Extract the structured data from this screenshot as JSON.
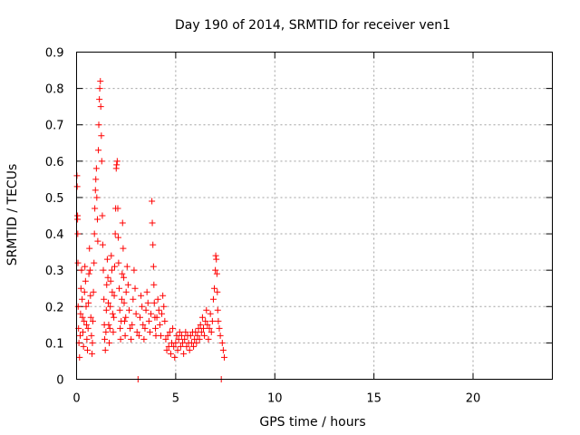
{
  "chart_data": {
    "type": "scatter",
    "title": "Day 190 of 2014, SRMTID for receiver ven1",
    "xlabel": "GPS time / hours",
    "ylabel": "SRMTID / TECUs",
    "xlim": [
      0,
      24
    ],
    "ylim": [
      0,
      0.9
    ],
    "xticks": [
      "0",
      "5",
      "10",
      "15",
      "20"
    ],
    "yticks": [
      "0",
      "0.1",
      "0.2",
      "0.3",
      "0.4",
      "0.5",
      "0.6",
      "0.7",
      "0.8",
      "0.9"
    ],
    "grid": true,
    "series": [
      {
        "name": "ven1",
        "color": "#ff0000",
        "marker": "plus",
        "points": [
          [
            0.02,
            0.56
          ],
          [
            0.03,
            0.53
          ],
          [
            0.05,
            0.45
          ],
          [
            0.05,
            0.44
          ],
          [
            0.06,
            0.4
          ],
          [
            0.07,
            0.32
          ],
          [
            0.08,
            0.2
          ],
          [
            0.1,
            0.14
          ],
          [
            0.12,
            0.1
          ],
          [
            0.15,
            0.06
          ],
          [
            0.18,
            0.12
          ],
          [
            0.2,
            0.18
          ],
          [
            0.22,
            0.25
          ],
          [
            0.25,
            0.3
          ],
          [
            0.28,
            0.22
          ],
          [
            0.3,
            0.17
          ],
          [
            0.32,
            0.13
          ],
          [
            0.35,
            0.09
          ],
          [
            0.38,
            0.16
          ],
          [
            0.4,
            0.24
          ],
          [
            0.42,
            0.31
          ],
          [
            0.45,
            0.27
          ],
          [
            0.48,
            0.2
          ],
          [
            0.5,
            0.15
          ],
          [
            0.52,
            0.11
          ],
          [
            0.55,
            0.08
          ],
          [
            0.58,
            0.14
          ],
          [
            0.6,
            0.21
          ],
          [
            0.62,
            0.29
          ],
          [
            0.65,
            0.36
          ],
          [
            0.68,
            0.3
          ],
          [
            0.7,
            0.23
          ],
          [
            0.72,
            0.17
          ],
          [
            0.75,
            0.12
          ],
          [
            0.78,
            0.07
          ],
          [
            0.8,
            0.1
          ],
          [
            0.82,
            0.16
          ],
          [
            0.85,
            0.24
          ],
          [
            0.88,
            0.32
          ],
          [
            0.9,
            0.4
          ],
          [
            0.92,
            0.47
          ],
          [
            0.95,
            0.52
          ],
          [
            0.97,
            0.55
          ],
          [
            1.0,
            0.58
          ],
          [
            1.02,
            0.5
          ],
          [
            1.05,
            0.44
          ],
          [
            1.07,
            0.38
          ],
          [
            1.1,
            0.63
          ],
          [
            1.12,
            0.7
          ],
          [
            1.15,
            0.77
          ],
          [
            1.17,
            0.8
          ],
          [
            1.2,
            0.82
          ],
          [
            1.22,
            0.75
          ],
          [
            1.25,
            0.67
          ],
          [
            1.27,
            0.6
          ],
          [
            1.3,
            0.45
          ],
          [
            1.32,
            0.37
          ],
          [
            1.35,
            0.3
          ],
          [
            1.38,
            0.22
          ],
          [
            1.4,
            0.15
          ],
          [
            1.42,
            0.11
          ],
          [
            1.45,
            0.08
          ],
          [
            1.48,
            0.13
          ],
          [
            1.5,
            0.19
          ],
          [
            1.52,
            0.26
          ],
          [
            1.55,
            0.33
          ],
          [
            1.58,
            0.28
          ],
          [
            1.6,
            0.21
          ],
          [
            1.62,
            0.15
          ],
          [
            1.65,
            0.1
          ],
          [
            1.68,
            0.14
          ],
          [
            1.7,
            0.2
          ],
          [
            1.72,
            0.27
          ],
          [
            1.75,
            0.34
          ],
          [
            1.78,
            0.3
          ],
          [
            1.8,
            0.24
          ],
          [
            1.82,
            0.18
          ],
          [
            1.85,
            0.13
          ],
          [
            1.88,
            0.17
          ],
          [
            1.9,
            0.23
          ],
          [
            1.92,
            0.31
          ],
          [
            1.95,
            0.4
          ],
          [
            1.97,
            0.47
          ],
          [
            2.0,
            0.58
          ],
          [
            2.02,
            0.59
          ],
          [
            2.05,
            0.6
          ],
          [
            2.08,
            0.47
          ],
          [
            2.1,
            0.39
          ],
          [
            2.12,
            0.32
          ],
          [
            2.15,
            0.25
          ],
          [
            2.18,
            0.19
          ],
          [
            2.2,
            0.14
          ],
          [
            2.22,
            0.11
          ],
          [
            2.25,
            0.16
          ],
          [
            2.28,
            0.22
          ],
          [
            2.3,
            0.29
          ],
          [
            2.32,
            0.43
          ],
          [
            2.35,
            0.36
          ],
          [
            2.38,
            0.28
          ],
          [
            2.4,
            0.21
          ],
          [
            2.42,
            0.16
          ],
          [
            2.45,
            0.12
          ],
          [
            2.48,
            0.17
          ],
          [
            2.5,
            0.24
          ],
          [
            2.55,
            0.31
          ],
          [
            2.6,
            0.26
          ],
          [
            2.65,
            0.19
          ],
          [
            2.7,
            0.14
          ],
          [
            2.75,
            0.11
          ],
          [
            2.8,
            0.15
          ],
          [
            2.85,
            0.22
          ],
          [
            2.9,
            0.3
          ],
          [
            2.95,
            0.25
          ],
          [
            3.0,
            0.18
          ],
          [
            3.05,
            0.13
          ],
          [
            3.1,
            0.0
          ],
          [
            3.15,
            0.12
          ],
          [
            3.2,
            0.17
          ],
          [
            3.25,
            0.23
          ],
          [
            3.3,
            0.2
          ],
          [
            3.35,
            0.15
          ],
          [
            3.4,
            0.11
          ],
          [
            3.45,
            0.14
          ],
          [
            3.5,
            0.19
          ],
          [
            3.55,
            0.24
          ],
          [
            3.6,
            0.21
          ],
          [
            3.65,
            0.16
          ],
          [
            3.7,
            0.13
          ],
          [
            3.75,
            0.18
          ],
          [
            3.8,
            0.49
          ],
          [
            3.82,
            0.43
          ],
          [
            3.85,
            0.37
          ],
          [
            3.88,
            0.31
          ],
          [
            3.9,
            0.26
          ],
          [
            3.92,
            0.21
          ],
          [
            3.95,
            0.17
          ],
          [
            3.98,
            0.14
          ],
          [
            4.0,
            0.12
          ],
          [
            4.05,
            0.17
          ],
          [
            4.1,
            0.22
          ],
          [
            4.15,
            0.19
          ],
          [
            4.2,
            0.15
          ],
          [
            4.25,
            0.12
          ],
          [
            4.3,
            0.18
          ],
          [
            4.35,
            0.23
          ],
          [
            4.4,
            0.2
          ],
          [
            4.45,
            0.16
          ],
          [
            4.5,
            0.11
          ],
          [
            4.55,
            0.08
          ],
          [
            4.6,
            0.12
          ],
          [
            4.65,
            0.09
          ],
          [
            4.7,
            0.13
          ],
          [
            4.75,
            0.07
          ],
          [
            4.8,
            0.1
          ],
          [
            4.85,
            0.14
          ],
          [
            4.9,
            0.09
          ],
          [
            4.95,
            0.06
          ],
          [
            5.0,
            0.1
          ],
          [
            5.05,
            0.12
          ],
          [
            5.1,
            0.08
          ],
          [
            5.15,
            0.11
          ],
          [
            5.2,
            0.13
          ],
          [
            5.25,
            0.09
          ],
          [
            5.3,
            0.12
          ],
          [
            5.35,
            0.1
          ],
          [
            5.4,
            0.07
          ],
          [
            5.45,
            0.11
          ],
          [
            5.5,
            0.13
          ],
          [
            5.55,
            0.09
          ],
          [
            5.6,
            0.12
          ],
          [
            5.65,
            0.1
          ],
          [
            5.7,
            0.08
          ],
          [
            5.75,
            0.12
          ],
          [
            5.8,
            0.1
          ],
          [
            5.85,
            0.13
          ],
          [
            5.9,
            0.09
          ],
          [
            5.95,
            0.11
          ],
          [
            6.0,
            0.13
          ],
          [
            6.05,
            0.1
          ],
          [
            6.1,
            0.12
          ],
          [
            6.15,
            0.14
          ],
          [
            6.2,
            0.11
          ],
          [
            6.25,
            0.15
          ],
          [
            6.3,
            0.13
          ],
          [
            6.35,
            0.17
          ],
          [
            6.4,
            0.14
          ],
          [
            6.45,
            0.12
          ],
          [
            6.5,
            0.16
          ],
          [
            6.55,
            0.19
          ],
          [
            6.6,
            0.15
          ],
          [
            6.65,
            0.11
          ],
          [
            6.7,
            0.14
          ],
          [
            6.75,
            0.18
          ],
          [
            6.8,
            0.13
          ],
          [
            6.85,
            0.16
          ],
          [
            6.9,
            0.22
          ],
          [
            6.95,
            0.25
          ],
          [
            7.0,
            0.3
          ],
          [
            7.02,
            0.34
          ],
          [
            7.05,
            0.33
          ],
          [
            7.08,
            0.29
          ],
          [
            7.1,
            0.24
          ],
          [
            7.12,
            0.19
          ],
          [
            7.15,
            0.16
          ],
          [
            7.2,
            0.14
          ],
          [
            7.25,
            0.12
          ],
          [
            7.3,
            0.0
          ],
          [
            7.35,
            0.1
          ],
          [
            7.4,
            0.08
          ],
          [
            7.45,
            0.06
          ]
        ]
      }
    ]
  }
}
